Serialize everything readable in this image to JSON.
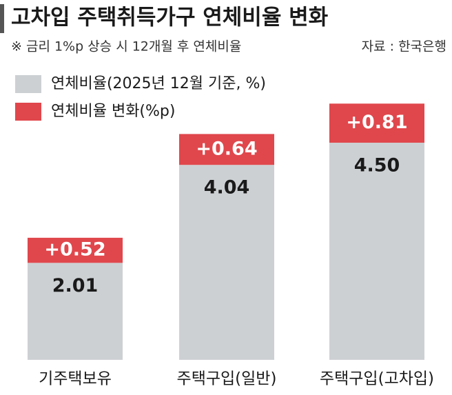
{
  "chart_data": {
    "type": "stacked-bar",
    "title": "고차입 주택취득가구 연체비율 변화",
    "subtitle": "※ 금리 1%p 상승 시 12개월 후 연체비율",
    "source": "자료 : 한국은행",
    "categories": [
      "기주택보유",
      "주택구입(일반)",
      "주택구입(고차입)"
    ],
    "series": [
      {
        "name": "연체비율(2025년 12월 기준, %)",
        "color": "#cdd0d3",
        "values": [
          2.01,
          4.04,
          4.5
        ],
        "value_labels": [
          "2.01",
          "4.04",
          "4.50"
        ]
      },
      {
        "name": "연체비율 변화(%p)",
        "color": "#e0474c",
        "values": [
          0.52,
          0.64,
          0.81
        ],
        "value_labels": [
          "+0.52",
          "+0.64",
          "+0.81"
        ]
      }
    ]
  }
}
